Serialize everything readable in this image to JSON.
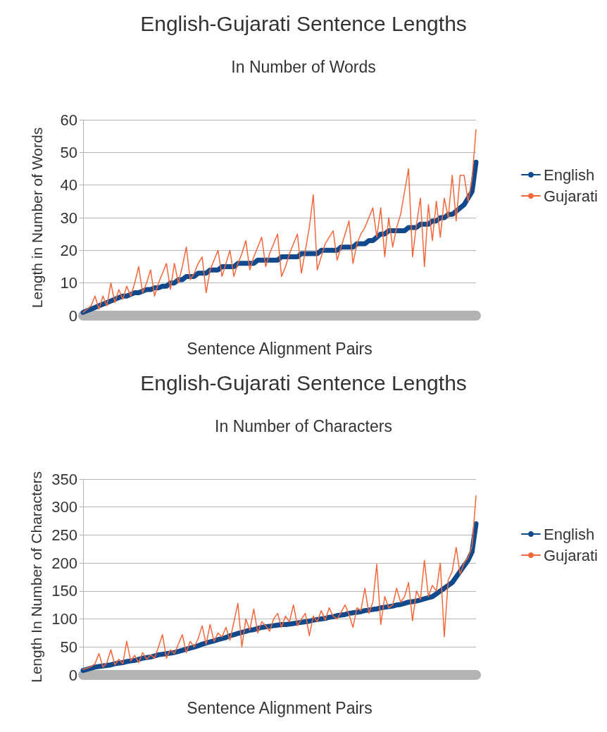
{
  "chart_data": [
    {
      "type": "line",
      "title": "English-Gujarati Sentence Lengths",
      "subtitle": "In Number of Words",
      "xlabel": "Sentence Alignment Pairs",
      "ylabel": "Length in Number of Words",
      "categories": [
        null,
        null,
        null,
        null,
        null,
        null,
        null,
        null,
        null,
        null,
        null,
        null,
        null,
        null,
        null,
        null,
        null,
        null,
        null,
        null,
        null,
        null,
        null,
        null,
        null,
        null,
        null,
        null,
        null,
        null,
        null,
        null,
        null,
        null,
        null,
        null,
        null,
        null,
        null,
        null,
        null,
        null,
        null,
        null,
        null,
        null,
        null,
        null,
        null,
        null,
        null,
        null,
        null,
        null,
        null,
        null,
        null,
        null,
        null,
        null,
        null,
        null,
        null,
        null,
        null,
        null,
        null,
        null,
        null,
        null,
        null,
        null,
        null,
        null,
        null,
        null,
        null,
        null,
        null,
        null,
        null,
        null,
        null,
        null,
        null,
        null,
        null,
        null,
        null,
        null,
        null,
        null,
        null,
        null,
        null,
        null,
        null,
        null,
        null,
        null
      ],
      "series": [
        {
          "name": "English",
          "color": "#104a8c",
          "values": [
            1,
            1.5,
            2,
            2.5,
            3,
            3.5,
            4,
            4.5,
            5,
            5.5,
            6,
            6,
            6.5,
            7,
            7,
            7.5,
            8,
            8,
            8.5,
            8.5,
            9,
            9,
            10,
            10,
            11,
            11,
            12,
            12,
            12,
            13,
            13,
            13,
            14,
            14,
            14,
            15,
            15,
            15,
            15,
            16,
            16,
            16,
            16,
            16,
            17,
            17,
            17,
            17,
            17,
            17,
            18,
            18,
            18,
            18,
            18,
            19,
            19,
            19,
            19,
            19,
            20,
            20,
            20,
            20,
            20,
            21,
            21,
            21,
            21,
            22,
            22,
            22,
            23,
            23,
            24,
            25,
            25,
            26,
            26,
            26,
            26,
            26,
            27,
            27,
            27,
            28,
            28,
            28,
            29,
            29,
            30,
            30,
            31,
            31,
            32,
            33,
            34,
            36,
            38,
            47
          ]
        },
        {
          "name": "Gujarati",
          "color": "#f4673a",
          "values": [
            1,
            2,
            3,
            6,
            2,
            6,
            3,
            10,
            4,
            8,
            5,
            9,
            6,
            10,
            15,
            7,
            10,
            14,
            6,
            10,
            13,
            16,
            8,
            16,
            10,
            15,
            21,
            11,
            13,
            16,
            18,
            7,
            14,
            17,
            20,
            12,
            16,
            20,
            12,
            16,
            19,
            23,
            14,
            18,
            21,
            24,
            15,
            19,
            22,
            25,
            12,
            15,
            19,
            22,
            25,
            13,
            20,
            27,
            37,
            14,
            18,
            22,
            24,
            26,
            17,
            21,
            25,
            29,
            16,
            22,
            25,
            27,
            30,
            33,
            24,
            33,
            18,
            30,
            21,
            27,
            31,
            38,
            45,
            18,
            28,
            36,
            15,
            34,
            23,
            35,
            24,
            36,
            30,
            43,
            29,
            43,
            43,
            35,
            42,
            57
          ]
        }
      ],
      "ylim": [
        0,
        60
      ],
      "yticks": [
        0,
        10,
        20,
        30,
        40,
        50,
        60
      ],
      "grid": "y",
      "legend": "right",
      "marker": "none",
      "line_style": "solid"
    },
    {
      "type": "line",
      "title": "English-Gujarati Sentence Lengths",
      "subtitle": "In Number of Characters",
      "xlabel": "Sentence Alignment Pairs",
      "ylabel": "Length In Number of Characters",
      "categories": [
        null,
        null,
        null,
        null,
        null,
        null,
        null,
        null,
        null,
        null,
        null,
        null,
        null,
        null,
        null,
        null,
        null,
        null,
        null,
        null,
        null,
        null,
        null,
        null,
        null,
        null,
        null,
        null,
        null,
        null,
        null,
        null,
        null,
        null,
        null,
        null,
        null,
        null,
        null,
        null,
        null,
        null,
        null,
        null,
        null,
        null,
        null,
        null,
        null,
        null,
        null,
        null,
        null,
        null,
        null,
        null,
        null,
        null,
        null,
        null,
        null,
        null,
        null,
        null,
        null,
        null,
        null,
        null,
        null,
        null,
        null,
        null,
        null,
        null,
        null,
        null,
        null,
        null,
        null,
        null,
        null,
        null,
        null,
        null,
        null,
        null,
        null,
        null,
        null,
        null,
        null,
        null,
        null,
        null,
        null,
        null,
        null,
        null,
        null,
        null
      ],
      "series": [
        {
          "name": "English",
          "color": "#104a8c",
          "values": [
            8,
            10,
            12,
            14,
            15,
            16,
            17,
            18,
            20,
            21,
            22,
            24,
            25,
            26,
            28,
            30,
            31,
            32,
            34,
            36,
            37,
            38,
            39,
            40,
            42,
            44,
            46,
            48,
            50,
            52,
            55,
            57,
            59,
            61,
            63,
            65,
            67,
            70,
            72,
            74,
            76,
            78,
            80,
            81,
            83,
            85,
            86,
            87,
            88,
            89,
            90,
            90,
            91,
            92,
            93,
            94,
            95,
            96,
            98,
            99,
            100,
            101,
            103,
            104,
            106,
            107,
            108,
            110,
            111,
            112,
            113,
            115,
            116,
            117,
            118,
            120,
            121,
            122,
            123,
            125,
            126,
            128,
            130,
            131,
            132,
            134,
            136,
            138,
            140,
            145,
            150,
            155,
            160,
            165,
            175,
            185,
            195,
            205,
            220,
            270
          ]
        },
        {
          "name": "Gujarati",
          "color": "#f4673a",
          "values": [
            10,
            12,
            15,
            20,
            38,
            14,
            22,
            45,
            18,
            28,
            20,
            60,
            25,
            35,
            22,
            40,
            28,
            36,
            30,
            50,
            72,
            30,
            45,
            38,
            55,
            72,
            40,
            60,
            50,
            65,
            88,
            55,
            90,
            60,
            75,
            68,
            85,
            62,
            95,
            128,
            50,
            100,
            80,
            118,
            75,
            95,
            88,
            78,
            100,
            110,
            85,
            105,
            95,
            125,
            88,
            100,
            110,
            70,
            105,
            95,
            115,
            98,
            120,
            105,
            100,
            112,
            125,
            108,
            85,
            120,
            115,
            155,
            110,
            130,
            198,
            90,
            140,
            120,
            125,
            155,
            130,
            140,
            165,
            97,
            150,
            135,
            205,
            140,
            160,
            150,
            200,
            68,
            170,
            185,
            228,
            180,
            200,
            210,
            230,
            320
          ]
        }
      ],
      "ylim": [
        0,
        350
      ],
      "yticks": [
        0,
        50,
        100,
        150,
        200,
        250,
        300,
        350
      ],
      "grid": "y",
      "legend": "right",
      "marker": "none",
      "line_style": "solid"
    }
  ]
}
